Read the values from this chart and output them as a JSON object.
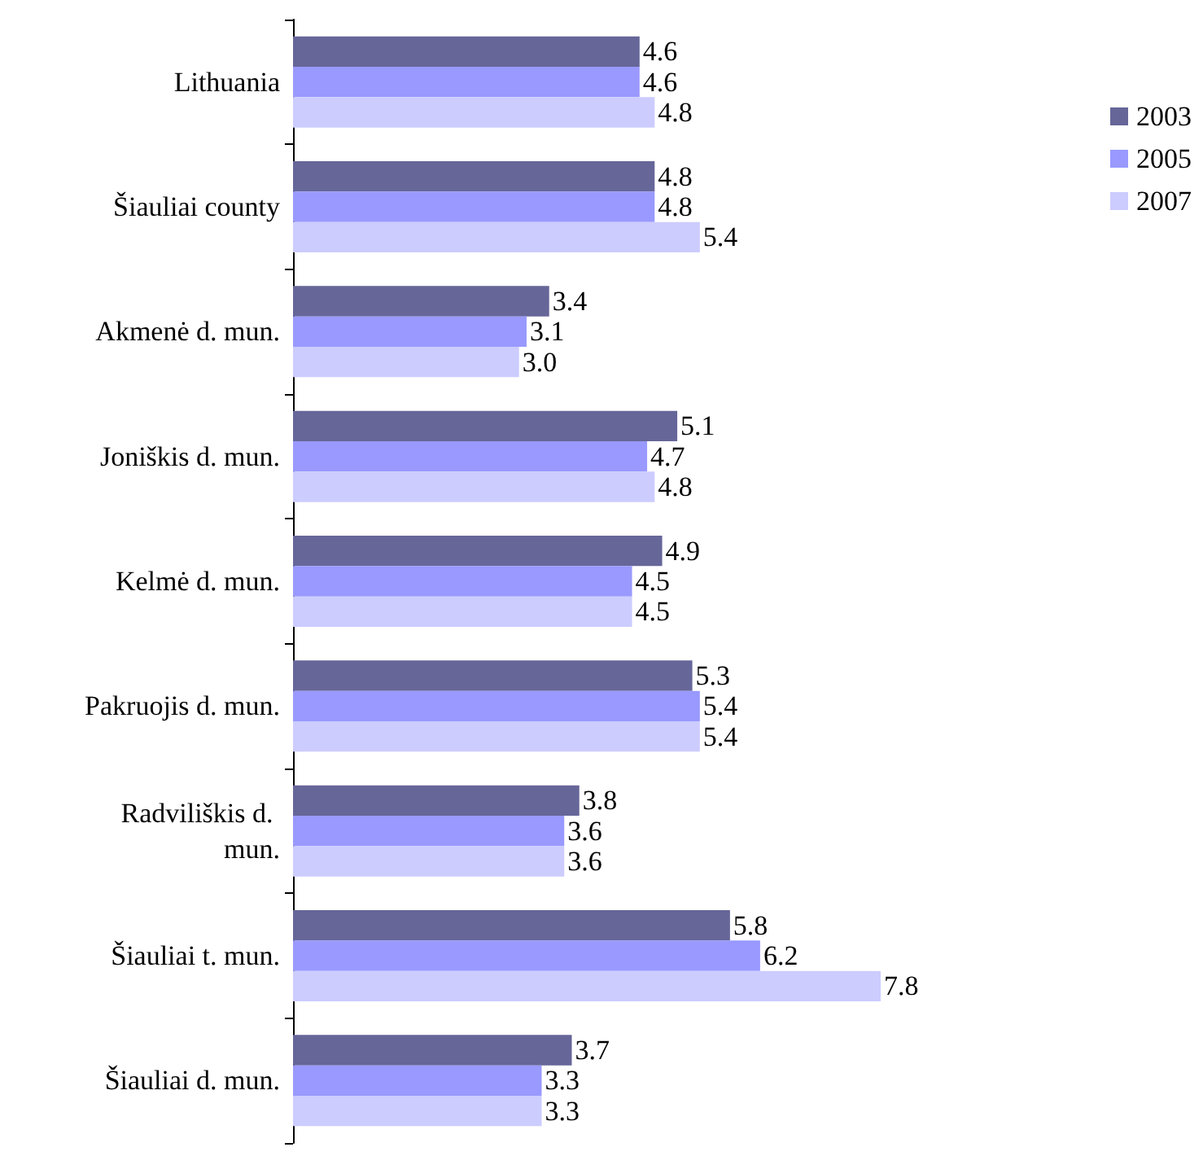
{
  "chart_data": {
    "type": "bar",
    "orientation": "horizontal",
    "tick_labels": "y",
    "legend": "top right",
    "categories": [
      "Lithuania",
      "Šiauliai county",
      "Akmenė d. mun.",
      "Joniškis d. mun.",
      "Kelmė d. mun.",
      "Pakruojis d. mun.",
      "Radviliškis d. mun.",
      "Šiauliai t. mun.",
      "Šiauliai d. mun."
    ],
    "series": [
      {
        "name": "2003",
        "color": "#666699",
        "values": [
          4.6,
          4.8,
          3.4,
          5.1,
          4.9,
          5.3,
          3.8,
          5.8,
          3.7
        ],
        "value_labels": [
          "4.6",
          "4.8",
          "3.4",
          "5.1",
          "4.9",
          "5.3",
          "3.8",
          "5.8",
          "3.7"
        ]
      },
      {
        "name": "2005",
        "color": "#9999ff",
        "values": [
          4.6,
          4.8,
          3.1,
          4.7,
          4.5,
          5.4,
          3.6,
          6.2,
          3.3
        ],
        "value_labels": [
          "4.6",
          "4.8",
          "3.1",
          "4.7",
          "4.5",
          "5.4",
          "3.6",
          "6.2",
          "3.3"
        ]
      },
      {
        "name": "2007",
        "color": "#ccccff",
        "values": [
          4.8,
          5.4,
          3.0,
          4.8,
          4.5,
          5.4,
          3.6,
          7.8,
          3.3
        ],
        "value_labels": [
          "4.8",
          "5.4",
          "3.0",
          "4.8",
          "4.5",
          "5.4",
          "3.6",
          "7.8",
          "3.3"
        ]
      }
    ]
  }
}
